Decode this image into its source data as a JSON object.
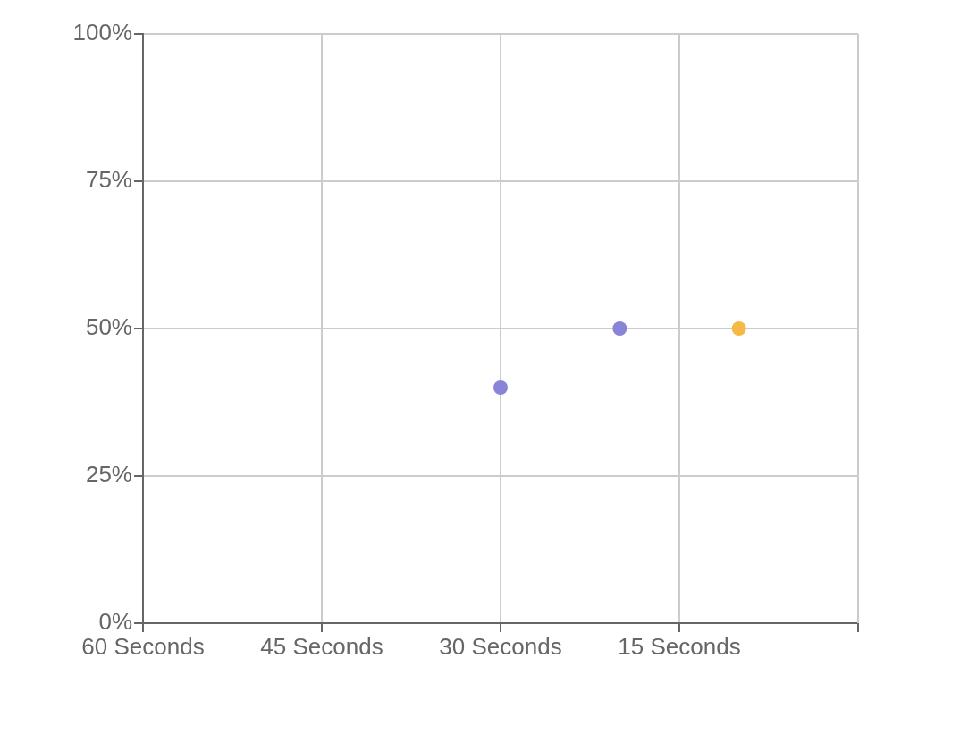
{
  "chart_data": {
    "type": "scatter",
    "marker": "circle",
    "grid": true,
    "legend": false,
    "xlim": [
      60,
      0
    ],
    "xticks": [
      {
        "value": 60,
        "label": "60 Seconds"
      },
      {
        "value": 45,
        "label": "45 Seconds"
      },
      {
        "value": 30,
        "label": "30 Seconds"
      },
      {
        "value": 15,
        "label": "15 Seconds"
      },
      {
        "value": 0,
        "label": null
      }
    ],
    "ylim": [
      0,
      100
    ],
    "yticks": [
      {
        "value": 0,
        "label": "0%"
      },
      {
        "value": 25,
        "label": "25%"
      },
      {
        "value": 50,
        "label": "50%"
      },
      {
        "value": 75,
        "label": "75%"
      },
      {
        "value": 100,
        "label": "100%"
      }
    ],
    "series": [
      {
        "color": "#8884d8",
        "x": [
          30,
          20
        ],
        "values": [
          40,
          50
        ]
      },
      {
        "color": "#f5b945",
        "x": [
          10
        ],
        "values": [
          50
        ]
      }
    ]
  }
}
